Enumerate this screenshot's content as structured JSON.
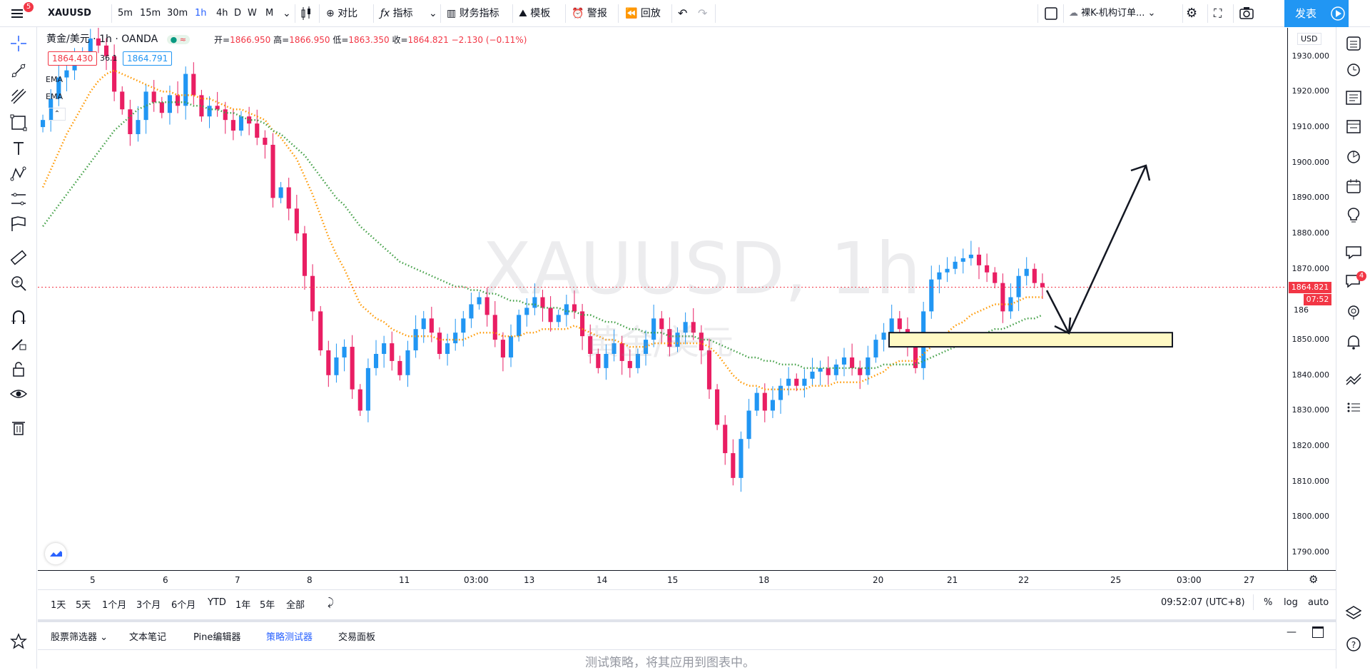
{
  "toolbar": {
    "menu_badge": "5",
    "symbol": "XAUUSD",
    "intervals": [
      "5m",
      "15m",
      "30m",
      "1h",
      "4h",
      "D",
      "W",
      "M"
    ],
    "active_interval": "1h",
    "compare_label": "对比",
    "indicators_label": "指标",
    "financials_label": "财务指标",
    "templates_label": "模板",
    "alert_label": "警报",
    "replay_label": "回放",
    "layout_name": "裸K-机构订单...",
    "publish_label": "发表"
  },
  "legend": {
    "title": "黄金/美元",
    "interval": "1h",
    "source": "OANDA",
    "open_label": "开=",
    "open": "1866.950",
    "high_label": "高=",
    "high": "1866.950",
    "low_label": "低=",
    "low": "1863.350",
    "close_label": "收=",
    "close": "1864.821",
    "change": "−2.130 (−0.11%)",
    "bid": "1864.430",
    "spread": "36.1",
    "ask": "1864.791",
    "indicators": [
      "EMA",
      "EMA"
    ]
  },
  "watermark": {
    "symbol": "XAUUSD, 1h",
    "desc": "黄金/美元"
  },
  "price_axis": {
    "currency": "USD",
    "ticks": [
      "1930.000",
      "1920.000",
      "1910.000",
      "1900.000",
      "1890.000",
      "1880.000",
      "1870.000",
      "1850.000",
      "1840.000",
      "1830.000",
      "1820.000",
      "1810.000",
      "1800.000",
      "1790.000"
    ],
    "partial_tick": "186",
    "last_price": "1864.821",
    "countdown": "07:52"
  },
  "time_axis": {
    "ticks": [
      "5",
      "6",
      "7",
      "8",
      "11",
      "03:00",
      "13",
      "14",
      "15",
      "18",
      "20",
      "21",
      "22",
      "25",
      "03:00",
      "27"
    ]
  },
  "chart_data": {
    "type": "candlestick",
    "ylim": [
      1785,
      1938
    ],
    "last_price": 1864.821,
    "zone": {
      "low": 1848,
      "high": 1852
    },
    "closes": [
      1912,
      1918,
      1924,
      1926,
      1929,
      1931,
      1935,
      1933,
      1930,
      1920,
      1915,
      1908,
      1912,
      1920,
      1917,
      1914,
      1919,
      1916,
      1925,
      1919,
      1913,
      1916,
      1915,
      1912,
      1909,
      1913,
      1911,
      1907,
      1905,
      1890,
      1893,
      1887,
      1880,
      1868,
      1858,
      1847,
      1840,
      1845,
      1848,
      1836,
      1830,
      1842,
      1846,
      1849,
      1844,
      1840,
      1847,
      1853,
      1856,
      1852,
      1846,
      1849,
      1852,
      1856,
      1860,
      1862,
      1857,
      1850,
      1845,
      1851,
      1857,
      1859,
      1862,
      1859,
      1855,
      1857,
      1860,
      1858,
      1851,
      1846,
      1842,
      1846,
      1849,
      1844,
      1842,
      1846,
      1850,
      1856,
      1853,
      1848,
      1852,
      1855,
      1852,
      1847,
      1836,
      1826,
      1818,
      1811,
      1822,
      1830,
      1835,
      1830,
      1833,
      1837,
      1839,
      1837,
      1839,
      1841,
      1842,
      1840,
      1843,
      1845,
      1842,
      1840,
      1845,
      1850,
      1852,
      1856,
      1853,
      1848,
      1842,
      1858,
      1867,
      1869,
      1870,
      1872,
      1873,
      1874,
      1871,
      1869,
      1866,
      1858,
      1862,
      1868,
      1870,
      1866,
      1864.8
    ],
    "ema_fast": [
      1893,
      1898,
      1903,
      1908,
      1912,
      1916,
      1920,
      1923,
      1925,
      1926,
      1925,
      1924,
      1923,
      1922,
      1921,
      1920,
      1920,
      1919,
      1919,
      1919,
      1918,
      1918,
      1917,
      1916,
      1915,
      1915,
      1914,
      1913,
      1912,
      1909,
      1907,
      1904,
      1901,
      1896,
      1891,
      1885,
      1879,
      1874,
      1870,
      1865,
      1860,
      1858,
      1856,
      1855,
      1853,
      1852,
      1851,
      1851,
      1851,
      1851,
      1850,
      1850,
      1850,
      1850,
      1851,
      1852,
      1852,
      1852,
      1851,
      1851,
      1851,
      1852,
      1852,
      1853,
      1853,
      1853,
      1853,
      1854,
      1853,
      1852,
      1851,
      1850,
      1850,
      1849,
      1848,
      1848,
      1848,
      1849,
      1849,
      1849,
      1849,
      1849,
      1849,
      1849,
      1848,
      1846,
      1843,
      1840,
      1838,
      1837,
      1837,
      1836,
      1836,
      1836,
      1836,
      1836,
      1836,
      1837,
      1837,
      1837,
      1838,
      1838,
      1838,
      1838,
      1839,
      1840,
      1841,
      1843,
      1844,
      1844,
      1844,
      1846,
      1848,
      1850,
      1852,
      1854,
      1855,
      1857,
      1858,
      1859,
      1860,
      1860,
      1860,
      1861,
      1862,
      1862,
      1862
    ],
    "ema_slow": [
      1882,
      1885,
      1888,
      1891,
      1894,
      1897,
      1900,
      1903,
      1906,
      1909,
      1911,
      1913,
      1915,
      1916,
      1917,
      1917,
      1917,
      1917,
      1917,
      1916,
      1916,
      1915,
      1915,
      1914,
      1914,
      1913,
      1912,
      1912,
      1911,
      1909,
      1908,
      1906,
      1904,
      1902,
      1899,
      1896,
      1893,
      1890,
      1888,
      1885,
      1882,
      1880,
      1878,
      1876,
      1874,
      1872,
      1871,
      1870,
      1869,
      1868,
      1867,
      1866,
      1865,
      1865,
      1864,
      1864,
      1863,
      1863,
      1862,
      1861,
      1861,
      1860,
      1860,
      1859,
      1859,
      1859,
      1858,
      1858,
      1857,
      1857,
      1856,
      1855,
      1855,
      1854,
      1853,
      1853,
      1852,
      1852,
      1852,
      1851,
      1851,
      1851,
      1851,
      1850,
      1850,
      1849,
      1848,
      1847,
      1846,
      1845,
      1845,
      1844,
      1844,
      1843,
      1843,
      1843,
      1842,
      1842,
      1842,
      1842,
      1842,
      1842,
      1842,
      1842,
      1842,
      1842,
      1843,
      1843,
      1843,
      1843,
      1843,
      1844,
      1845,
      1846,
      1847,
      1848,
      1849,
      1850,
      1851,
      1852,
      1853,
      1853,
      1854,
      1855,
      1856,
      1856,
      1857
    ]
  },
  "ranges": [
    "1天",
    "5天",
    "1个月",
    "3个月",
    "6个月",
    "YTD",
    "1年",
    "5年",
    "全部"
  ],
  "clock": "09:52:07 (UTC+8)",
  "scale_options": [
    "%",
    "log",
    "auto"
  ],
  "bottom_tabs": [
    "股票筛选器",
    "文本笔记",
    "Pine编辑器",
    "策略测试器",
    "交易面板"
  ],
  "active_bottom_tab": "策略测试器",
  "bottom_message": "测试策略，将其应用到图表中。",
  "right_badge": "4",
  "colors": {
    "up": "#2196f3",
    "down": "#e91e63",
    "ema_fast": "#ff9800",
    "ema_slow": "#43a047",
    "zone": "#fff9c4",
    "accent": "#2962ff"
  }
}
